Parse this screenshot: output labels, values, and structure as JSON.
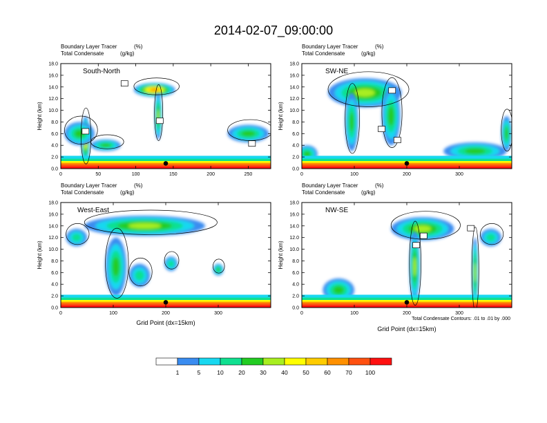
{
  "title": "2014-02-07_09:00:00",
  "legend": {
    "levels": [
      "1",
      "5",
      "10",
      "20",
      "30",
      "40",
      "50",
      "60",
      "70",
      "100"
    ],
    "colors": [
      "#ffffff",
      "#3a8cf0",
      "#18d8f0",
      "#10e090",
      "#22cc22",
      "#a8ee20",
      "#ffff00",
      "#ffcc00",
      "#ff9000",
      "#ff5010",
      "#ff1010"
    ]
  },
  "contour_note": "Total Condensate Contours: .01 to .01 by .000",
  "chart_data": [
    {
      "type": "heatmap",
      "label": "South-North",
      "header_left1": "Boundary Layer Tracer",
      "header_right1": "(%)",
      "header_left2": "Total Condensate",
      "header_right2": "(g/kg)",
      "ylabel": "Height (km)",
      "xlabel": "",
      "ylim": [
        0,
        18
      ],
      "xlim": [
        0,
        280
      ],
      "xticks": [
        "0",
        "50",
        "100",
        "150",
        "200",
        "250"
      ],
      "yticks": [
        "0.0",
        "2.0",
        "4.0",
        "6.0",
        "8.0",
        "10.0",
        "12.0",
        "14.0",
        "16.0",
        "18.0"
      ],
      "marker": {
        "x": 140,
        "y": 0.9
      },
      "tracer_blobs": [
        {
          "x": 125,
          "y": 13.5,
          "w": 55,
          "h": 2.4,
          "level": 8
        },
        {
          "x": 130,
          "y": 9,
          "w": 10,
          "h": 8,
          "level": 5
        },
        {
          "x": 33,
          "y": 5,
          "w": 12,
          "h": 8,
          "level": 7
        },
        {
          "x": 25,
          "y": 6,
          "w": 40,
          "h": 4,
          "level": 4
        },
        {
          "x": 250,
          "y": 6,
          "w": 55,
          "h": 3,
          "level": 4
        },
        {
          "x": 60,
          "y": 4,
          "w": 40,
          "h": 2,
          "level": 4
        }
      ],
      "boxes": [
        {
          "x": 85,
          "y": 14.6
        },
        {
          "x": 132,
          "y": 8.2
        },
        {
          "x": 33,
          "y": 6.4
        },
        {
          "x": 255,
          "y": 4.3
        }
      ]
    },
    {
      "type": "heatmap",
      "label": "SW-NE",
      "header_left1": "Boundary Layer Tracer",
      "header_right1": "(%)",
      "header_left2": "Total Condensate",
      "header_right2": "(g/kg)",
      "ylabel": "Height (km)",
      "xlabel": "",
      "ylim": [
        0,
        18
      ],
      "xlim": [
        0,
        400
      ],
      "xticks": [
        "0",
        "100",
        "200",
        "300"
      ],
      "yticks": [
        "0.0",
        "2.0",
        "4.0",
        "6.0",
        "8.0",
        "10.0",
        "12.0",
        "14.0",
        "16.0",
        "18.0"
      ],
      "marker": {
        "x": 200,
        "y": 0.9
      },
      "tracer_blobs": [
        {
          "x": 120,
          "y": 13,
          "w": 140,
          "h": 5,
          "level": 5
        },
        {
          "x": 95,
          "y": 8,
          "w": 25,
          "h": 10,
          "level": 4
        },
        {
          "x": 170,
          "y": 9,
          "w": 35,
          "h": 10,
          "level": 4
        },
        {
          "x": 330,
          "y": 3,
          "w": 120,
          "h": 3,
          "level": 4
        },
        {
          "x": 10,
          "y": 2.5,
          "w": 40,
          "h": 3,
          "level": 4
        },
        {
          "x": 390,
          "y": 6,
          "w": 20,
          "h": 6,
          "level": 4
        }
      ],
      "boxes": [
        {
          "x": 172,
          "y": 13.4
        },
        {
          "x": 152,
          "y": 6.8
        },
        {
          "x": 182,
          "y": 4.9
        }
      ]
    },
    {
      "type": "heatmap",
      "label": "West-East",
      "header_left1": "Boundary Layer Tracer",
      "header_right1": "(%)",
      "header_left2": "Total Condensate",
      "header_right2": "(g/kg)",
      "ylabel": "Height (km)",
      "xlabel": "Grid Point (dx=15km)",
      "ylim": [
        0,
        18
      ],
      "xlim": [
        0,
        400
      ],
      "xticks": [
        "0",
        "100",
        "200",
        "300"
      ],
      "yticks": [
        "0.0",
        "2.0",
        "4.0",
        "6.0",
        "8.0",
        "10.0",
        "12.0",
        "14.0",
        "16.0",
        "18.0"
      ],
      "marker": {
        "x": 200,
        "y": 0.9
      },
      "tracer_blobs": [
        {
          "x": 160,
          "y": 14,
          "w": 230,
          "h": 3.5,
          "level": 5
        },
        {
          "x": 105,
          "y": 7,
          "w": 40,
          "h": 10,
          "level": 4
        },
        {
          "x": 150,
          "y": 5.5,
          "w": 40,
          "h": 4,
          "level": 3
        },
        {
          "x": 210,
          "y": 7.5,
          "w": 25,
          "h": 2.5,
          "level": 3
        },
        {
          "x": 300,
          "y": 6.5,
          "w": 20,
          "h": 2,
          "level": 4
        },
        {
          "x": 30,
          "y": 12,
          "w": 40,
          "h": 3,
          "level": 3
        }
      ],
      "boxes": []
    },
    {
      "type": "heatmap",
      "label": "NW-SE",
      "header_left1": "Boundary Layer Tracer",
      "header_right1": "(%)",
      "header_left2": "Total Condensate",
      "header_right2": "(g/kg)",
      "ylabel": "Height (km)",
      "xlabel": "Grid Point (dx=15km)",
      "ylim": [
        0,
        18
      ],
      "xlim": [
        0,
        400
      ],
      "xticks": [
        "0",
        "100",
        "200",
        "300"
      ],
      "yticks": [
        "0.0",
        "2.0",
        "4.0",
        "6.0",
        "8.0",
        "10.0",
        "12.0",
        "14.0",
        "16.0",
        "18.0"
      ],
      "marker": {
        "x": 200,
        "y": 0.9
      },
      "tracer_blobs": [
        {
          "x": 230,
          "y": 13.5,
          "w": 120,
          "h": 4,
          "level": 5
        },
        {
          "x": 215,
          "y": 7,
          "w": 20,
          "h": 12,
          "level": 5
        },
        {
          "x": 330,
          "y": 6,
          "w": 12,
          "h": 12,
          "level": 5
        },
        {
          "x": 70,
          "y": 3,
          "w": 60,
          "h": 4,
          "level": 4
        },
        {
          "x": 360,
          "y": 12,
          "w": 40,
          "h": 3,
          "level": 3
        }
      ],
      "boxes": [
        {
          "x": 232,
          "y": 12.3
        },
        {
          "x": 218,
          "y": 10.7
        },
        {
          "x": 322,
          "y": 13.6
        }
      ]
    }
  ]
}
